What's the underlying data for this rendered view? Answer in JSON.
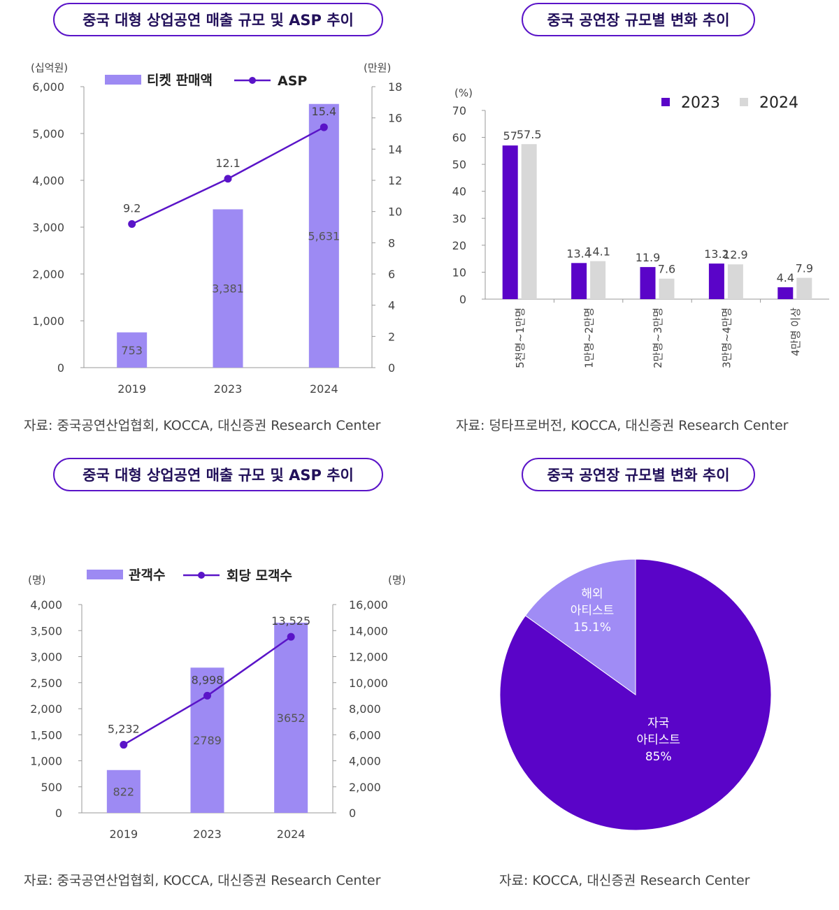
{
  "chart_data": [
    {
      "type": "bar",
      "title": "중국 대형 상업공연 매출 규모 및 ASP 추이",
      "left_unit": "(십억원)",
      "right_unit": "(만원)",
      "categories": [
        "2019",
        "2023",
        "2024"
      ],
      "series": [
        {
          "name": "티켓 판매액",
          "type": "bar",
          "axis": "left",
          "values": [
            753,
            3381,
            5631
          ],
          "labels": [
            "753",
            "3,381",
            "5,631"
          ]
        },
        {
          "name": "ASP",
          "type": "line",
          "axis": "right",
          "values": [
            9.2,
            12.1,
            15.4
          ],
          "labels": [
            "9.2",
            "12.1",
            "15.4"
          ]
        }
      ],
      "left_ticks": [
        "0",
        "1,000",
        "2,000",
        "3,000",
        "4,000",
        "5,000",
        "6,000"
      ],
      "right_ticks": [
        "0",
        "2",
        "4",
        "6",
        "8",
        "10",
        "12",
        "14",
        "16",
        "18"
      ],
      "ylim_left": [
        0,
        6000
      ],
      "ylim_right": [
        0,
        18
      ],
      "colors": {
        "bar": "#9d8af3",
        "line": "#5a14c8"
      },
      "source": "자료: 중국공연산업협회, KOCCA, 대신증권 Research Center"
    },
    {
      "type": "bar",
      "title": "중국 공연장 규모별 변화 추이",
      "unit": "(%)",
      "categories": [
        "5천명~1만명",
        "1만명~2만명",
        "2만명~3만명",
        "3만명~4만명",
        "4만명 이상"
      ],
      "series": [
        {
          "name": "2023",
          "values": [
            57,
            13.4,
            11.9,
            13.2,
            4.4
          ],
          "labels": [
            "57",
            "13.4",
            "11.9",
            "13.2",
            "4.4"
          ]
        },
        {
          "name": "2024",
          "values": [
            57.5,
            14.1,
            7.6,
            12.9,
            7.9
          ],
          "labels": [
            "57.5",
            "14.1",
            "7.6",
            "12.9",
            "7.9"
          ]
        }
      ],
      "y_ticks": [
        "0",
        "10",
        "20",
        "30",
        "40",
        "50",
        "60",
        "70"
      ],
      "ylim": [
        0,
        70
      ],
      "legend": "top-right",
      "colors": {
        "2023": "#5a04c8",
        "2024": "#d8d8d8"
      },
      "source": "자료: 덩타프로버전, KOCCA, 대신증권 Research Center"
    },
    {
      "type": "bar",
      "title": "중국 대형 상업공연 매출 규모 및 ASP 추이",
      "left_unit": "(명)",
      "right_unit": "(명)",
      "categories": [
        "2019",
        "2023",
        "2024"
      ],
      "series": [
        {
          "name": "관객수",
          "type": "bar",
          "axis": "left",
          "values": [
            822,
            2789,
            3652
          ],
          "labels": [
            "822",
            "2789",
            "3652"
          ]
        },
        {
          "name": "회당 모객수",
          "type": "line",
          "axis": "right",
          "values": [
            5232,
            8998,
            13525
          ],
          "labels": [
            "5,232",
            "8,998",
            "13,525"
          ]
        }
      ],
      "left_ticks": [
        "0",
        "500",
        "1,000",
        "1,500",
        "2,000",
        "2,500",
        "3,000",
        "3,500",
        "4,000"
      ],
      "right_ticks": [
        "0",
        "2,000",
        "4,000",
        "6,000",
        "8,000",
        "10,000",
        "12,000",
        "14,000",
        "16,000"
      ],
      "ylim_left": [
        0,
        4000
      ],
      "ylim_right": [
        0,
        16000
      ],
      "colors": {
        "bar": "#9d8af3",
        "line": "#5a14c8"
      },
      "source": "자료: 중국공연산업협회, KOCCA, 대신증권 Research Center"
    },
    {
      "type": "pie",
      "title": "중국 공연장 규모별 변화 추이",
      "slices": [
        {
          "name": "자국 아티스트",
          "value": 85,
          "label_lines": [
            "자국",
            "아티스트",
            "85%"
          ],
          "color": "#5a04c8"
        },
        {
          "name": "해외 아티스트",
          "value": 15.1,
          "label_lines": [
            "해외",
            "아티스트",
            "15.1%"
          ],
          "color": "#a08cf5"
        }
      ],
      "source": "자료: KOCCA, 대신증권 Research Center"
    }
  ]
}
